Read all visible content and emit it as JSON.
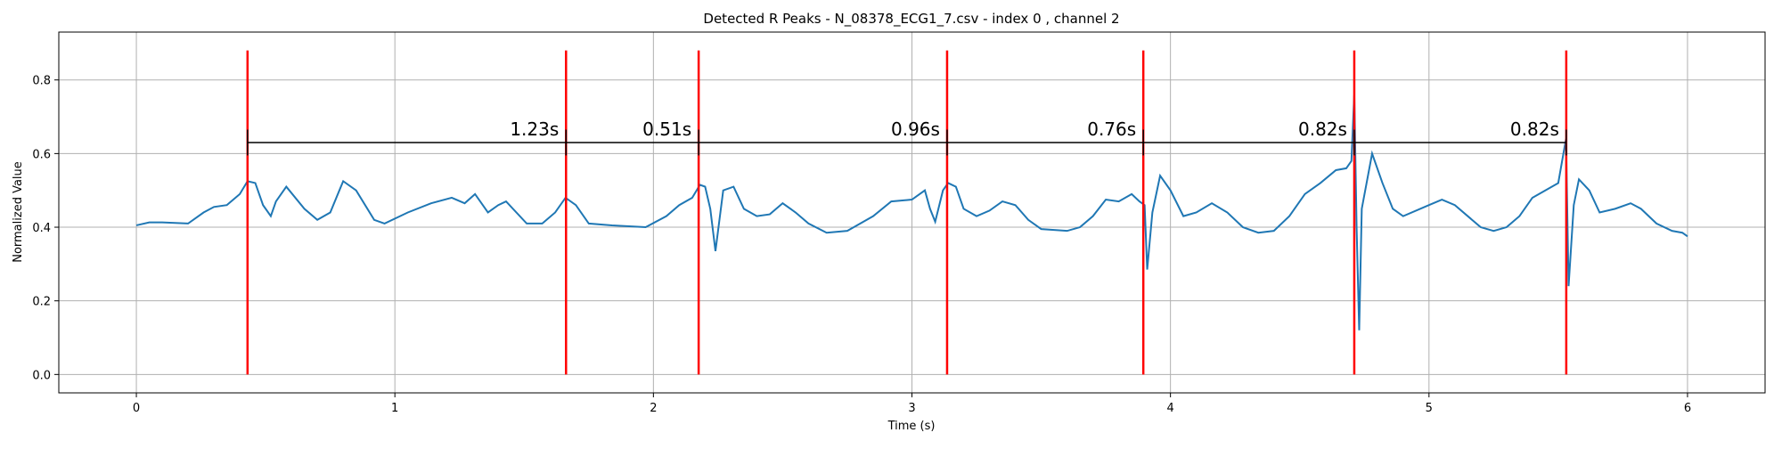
{
  "chart_data": {
    "type": "line",
    "title": "Detected R Peaks - N_08378_ECG1_7.csv - index 0 , channel 2",
    "xlabel": "Time (s)",
    "ylabel": "Normalized Value",
    "xlim": [
      -0.3,
      6.3
    ],
    "ylim": [
      -0.05,
      0.93
    ],
    "xticks": [
      0,
      1,
      2,
      3,
      4,
      5,
      6
    ],
    "yticks": [
      {
        "value": 0,
        "label": "0.0"
      },
      0.2,
      0.4,
      0.6,
      0.8
    ],
    "grid": true,
    "x": [
      0,
      0.05,
      0.1,
      0.2,
      0.26,
      0.3,
      0.35,
      0.4,
      0.43,
      0.46,
      0.49,
      0.52,
      0.54,
      0.58,
      0.65,
      0.7,
      0.75,
      0.8,
      0.85,
      0.92,
      0.96,
      1.05,
      1.14,
      1.22,
      1.27,
      1.31,
      1.36,
      1.4,
      1.43,
      1.51,
      1.57,
      1.62,
      1.66,
      1.7,
      1.75,
      1.84,
      1.97,
      2.05,
      2.1,
      2.15,
      2.18,
      2.2,
      2.22,
      2.24,
      2.27,
      2.31,
      2.35,
      2.4,
      2.45,
      2.5,
      2.55,
      2.6,
      2.67,
      2.75,
      2.85,
      2.92,
      3.0,
      3.05,
      3.07,
      3.09,
      3.12,
      3.14,
      3.17,
      3.2,
      3.25,
      3.3,
      3.35,
      3.4,
      3.45,
      3.5,
      3.6,
      3.65,
      3.7,
      3.75,
      3.8,
      3.85,
      3.88,
      3.9,
      3.91,
      3.93,
      3.96,
      4.0,
      4.05,
      4.1,
      4.16,
      4.22,
      4.28,
      4.34,
      4.4,
      4.46,
      4.52,
      4.58,
      4.64,
      4.68,
      4.7,
      4.711,
      4.72,
      4.73,
      4.74,
      4.78,
      4.82,
      4.86,
      4.9,
      5.0,
      5.05,
      5.1,
      5.2,
      5.25,
      5.3,
      5.35,
      5.4,
      5.45,
      5.5,
      5.53,
      5.54,
      5.56,
      5.58,
      5.62,
      5.66,
      5.72,
      5.78,
      5.82,
      5.88,
      5.94,
      5.98,
      6.0
    ],
    "series": [
      {
        "color": "#1f77b4",
        "values": [
          0.405,
          0.413,
          0.413,
          0.41,
          0.44,
          0.455,
          0.46,
          0.49,
          0.525,
          0.52,
          0.46,
          0.43,
          0.47,
          0.51,
          0.45,
          0.42,
          0.44,
          0.525,
          0.5,
          0.42,
          0.41,
          0.44,
          0.465,
          0.48,
          0.465,
          0.49,
          0.44,
          0.46,
          0.47,
          0.41,
          0.41,
          0.44,
          0.48,
          0.46,
          0.41,
          0.405,
          0.4,
          0.43,
          0.46,
          0.48,
          0.515,
          0.51,
          0.45,
          0.335,
          0.5,
          0.51,
          0.45,
          0.43,
          0.435,
          0.465,
          0.44,
          0.41,
          0.385,
          0.39,
          0.43,
          0.47,
          0.475,
          0.5,
          0.45,
          0.415,
          0.5,
          0.52,
          0.51,
          0.45,
          0.43,
          0.445,
          0.47,
          0.46,
          0.42,
          0.395,
          0.39,
          0.4,
          0.43,
          0.475,
          0.47,
          0.49,
          0.47,
          0.46,
          0.285,
          0.44,
          0.54,
          0.5,
          0.43,
          0.44,
          0.465,
          0.44,
          0.4,
          0.385,
          0.39,
          0.43,
          0.49,
          0.52,
          0.555,
          0.56,
          0.58,
          0.76,
          0.4,
          0.12,
          0.45,
          0.6,
          0.52,
          0.45,
          0.43,
          0.46,
          0.475,
          0.46,
          0.4,
          0.39,
          0.4,
          0.43,
          0.48,
          0.5,
          0.52,
          0.64,
          0.24,
          0.46,
          0.53,
          0.5,
          0.44,
          0.45,
          0.465,
          0.45,
          0.41,
          0.39,
          0.385,
          0.375
        ]
      }
    ],
    "peaks": [
      0.43,
      1.662,
      2.175,
      3.136,
      3.895,
      4.711,
      5.531
    ],
    "peak_color": "red",
    "peak_ylim": [
      0,
      0.88
    ],
    "interval_y": 0.63,
    "interval_tick_ylim": [
      0.595,
      0.665
    ],
    "intervals": [
      1.23,
      0.51,
      0.96,
      0.76,
      0.82,
      0.82
    ],
    "interval_labels": [
      "1.23s",
      "0.51s",
      "0.96s",
      "0.76s",
      "0.82s",
      "0.82s"
    ]
  }
}
